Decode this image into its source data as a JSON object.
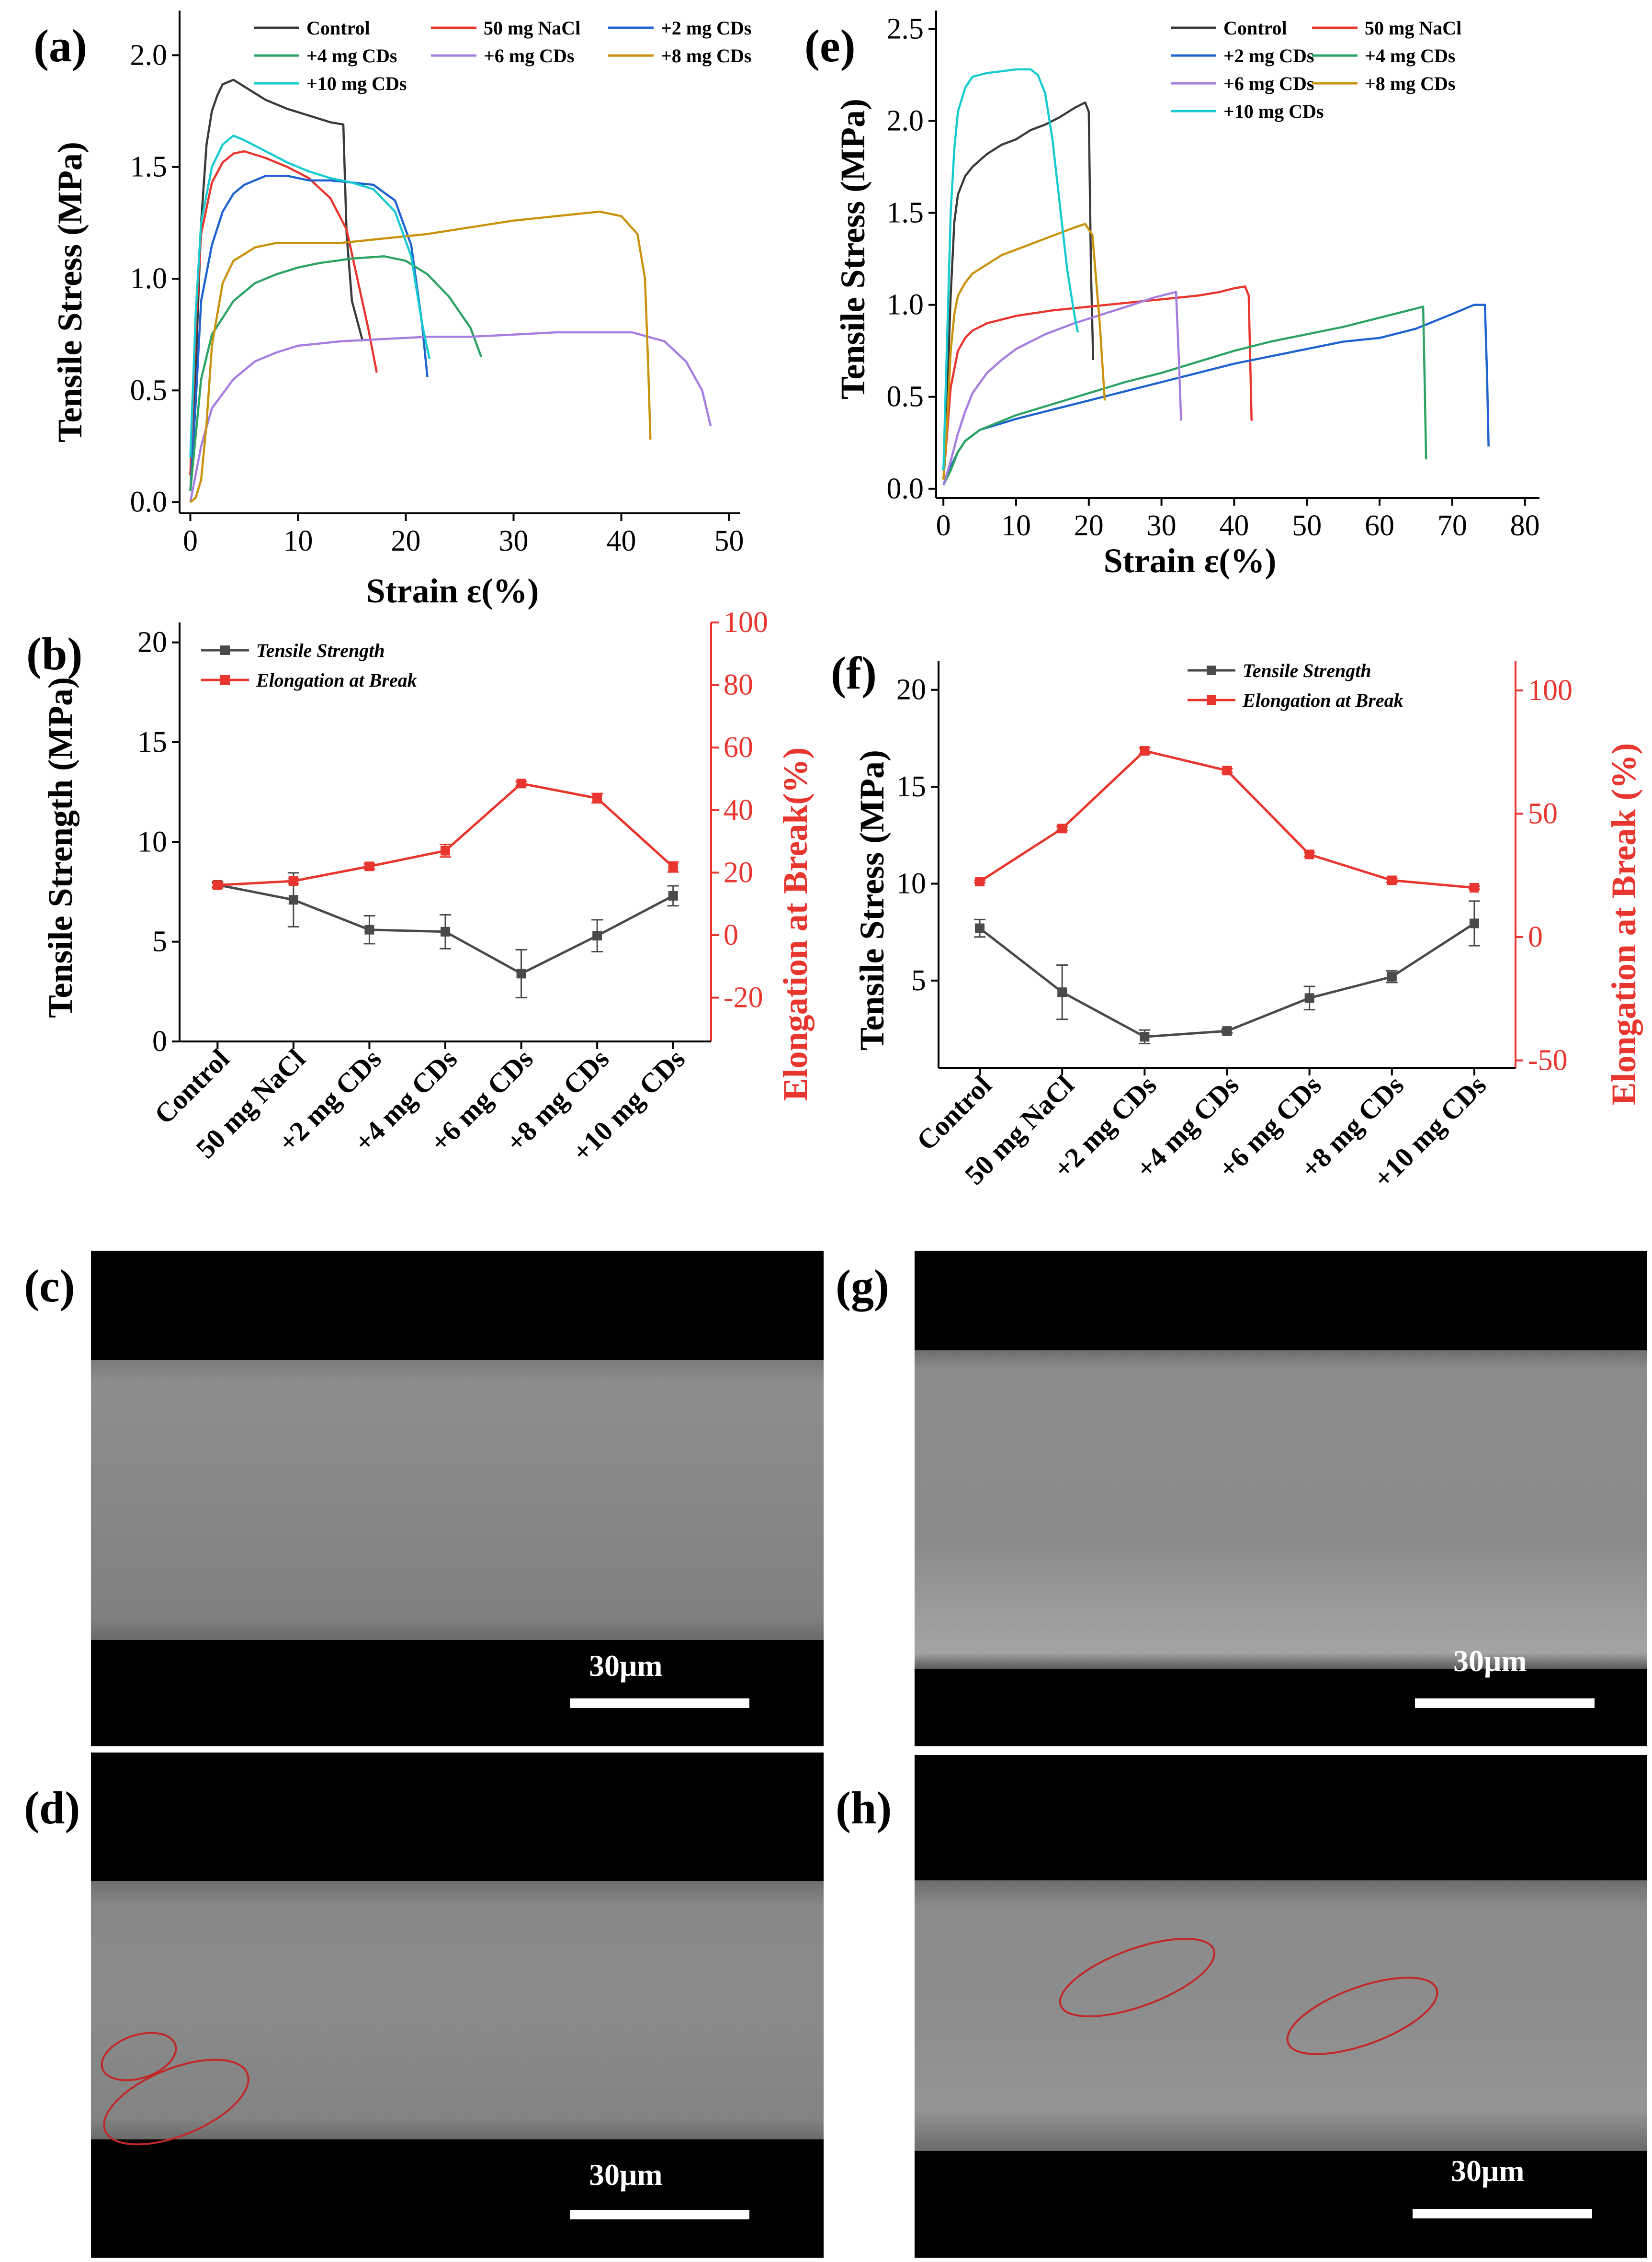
{
  "colors": {
    "Control": "#3a3a3a",
    "50 mg NaCl": "#e8352e",
    "+2 mg CDs": "#1f63d0",
    "+4 mg CDs": "#2ea464",
    "+6 mg CDs": "#a57ee0",
    "+8 mg CDs": "#c9930e",
    "+10 mg CDs": "#18cbd0",
    "strength": "#4a4a4a",
    "elong": "#e8352e",
    "ellipse": "#c0282a"
  },
  "panels": {
    "a": "(a)",
    "b": "(b)",
    "c": "(c)",
    "d": "(d)",
    "e": "(e)",
    "f": "(f)",
    "g": "(g)",
    "h": "(h)"
  },
  "scale": {
    "c": "30μm",
    "d": "30μm",
    "g": "30μm",
    "h": "30μm"
  },
  "chart_data": [
    {
      "id": "a",
      "type": "line",
      "xlabel": "Strain ε(%)",
      "ylabel": "Tensile Stress (MPa)",
      "xlim": [
        -1,
        51
      ],
      "ylim": [
        -0.05,
        2.2
      ],
      "xticks": [
        0,
        10,
        20,
        30,
        40,
        50
      ],
      "yticks": [
        0.0,
        0.5,
        1.0,
        1.5,
        2.0
      ],
      "legend": [
        "Control",
        "50 mg NaCl",
        "+2 mg CDs",
        "+4 mg CDs",
        "+6 mg CDs",
        "+8 mg CDs",
        "+10 mg CDs"
      ],
      "series": [
        {
          "name": "Control",
          "x": [
            0,
            0.5,
            1,
            1.5,
            2,
            2.5,
            3,
            4,
            5,
            7,
            9,
            11,
            13,
            14.2,
            14.5,
            15,
            16
          ],
          "y": [
            0.12,
            0.6,
            1.25,
            1.6,
            1.75,
            1.82,
            1.87,
            1.89,
            1.86,
            1.8,
            1.76,
            1.73,
            1.7,
            1.69,
            1.2,
            0.9,
            0.72
          ]
        },
        {
          "name": "50 mg NaCl",
          "x": [
            0,
            0.5,
            1,
            2,
            3,
            4,
            5,
            7,
            9,
            11,
            13,
            14.5,
            15.5,
            16.5,
            17.3
          ],
          "y": [
            0.12,
            0.8,
            1.2,
            1.43,
            1.52,
            1.56,
            1.57,
            1.54,
            1.5,
            1.45,
            1.36,
            1.22,
            1.0,
            0.78,
            0.58
          ]
        },
        {
          "name": "+2 mg CDs",
          "x": [
            0,
            0.5,
            1,
            2,
            3,
            4,
            5,
            7,
            9,
            11,
            13,
            15,
            17,
            19,
            20.5,
            21.5,
            22
          ],
          "y": [
            0.05,
            0.45,
            0.9,
            1.15,
            1.3,
            1.38,
            1.42,
            1.46,
            1.46,
            1.44,
            1.44,
            1.43,
            1.42,
            1.35,
            1.15,
            0.8,
            0.56
          ]
        },
        {
          "name": "+4 mg CDs",
          "x": [
            0,
            0.5,
            1,
            2,
            4,
            6,
            8,
            10,
            12,
            15,
            18,
            20,
            22,
            24,
            26,
            27
          ],
          "y": [
            0.05,
            0.3,
            0.55,
            0.75,
            0.9,
            0.98,
            1.02,
            1.05,
            1.07,
            1.09,
            1.1,
            1.08,
            1.02,
            0.92,
            0.78,
            0.65
          ]
        },
        {
          "name": "+6 mg CDs",
          "x": [
            0,
            1,
            2,
            4,
            6,
            8,
            10,
            14,
            18,
            22,
            26,
            30,
            34,
            38,
            41,
            44,
            46,
            47.5,
            48.3
          ],
          "y": [
            0.0,
            0.25,
            0.42,
            0.55,
            0.63,
            0.67,
            0.7,
            0.72,
            0.73,
            0.74,
            0.74,
            0.75,
            0.76,
            0.76,
            0.76,
            0.72,
            0.63,
            0.5,
            0.34
          ]
        },
        {
          "name": "+8 mg CDs",
          "x": [
            0,
            0.5,
            1,
            1.5,
            2,
            3,
            4,
            6,
            8,
            10,
            14,
            18,
            22,
            26,
            30,
            34,
            38,
            40,
            41.5,
            42.2,
            42.5,
            42.7
          ],
          "y": [
            0.0,
            0.02,
            0.1,
            0.35,
            0.7,
            0.98,
            1.08,
            1.14,
            1.16,
            1.16,
            1.16,
            1.18,
            1.2,
            1.23,
            1.26,
            1.28,
            1.3,
            1.28,
            1.2,
            1.0,
            0.6,
            0.28
          ]
        },
        {
          "name": "+10 mg CDs",
          "x": [
            0,
            0.5,
            1,
            2,
            3,
            4,
            5,
            7,
            9,
            11,
            13,
            15,
            17,
            19,
            20.5,
            21.5,
            22.2
          ],
          "y": [
            0.2,
            0.85,
            1.25,
            1.5,
            1.6,
            1.64,
            1.62,
            1.57,
            1.52,
            1.48,
            1.45,
            1.43,
            1.4,
            1.3,
            1.1,
            0.8,
            0.64
          ]
        }
      ]
    },
    {
      "id": "e",
      "type": "line",
      "xlabel": "Strain ε(%)",
      "ylabel": "Tensile Stress (MPa)",
      "xlim": [
        -1,
        82
      ],
      "ylim": [
        -0.05,
        2.6
      ],
      "xticks": [
        0,
        10,
        20,
        30,
        40,
        50,
        60,
        70,
        80
      ],
      "yticks": [
        0.0,
        0.5,
        1.0,
        1.5,
        2.0,
        2.5
      ],
      "legend": [
        "Control",
        "50 mg NaCl",
        "+2 mg CDs",
        "+4 mg CDs",
        "+6 mg CDs",
        "+8 mg CDs",
        "+10 mg CDs"
      ],
      "series": [
        {
          "name": "Control",
          "x": [
            0,
            0.5,
            1,
            1.5,
            2,
            3,
            4,
            6,
            8,
            10,
            12,
            14,
            16,
            18,
            19.5,
            20,
            20.3,
            20.6
          ],
          "y": [
            0.1,
            0.5,
            1.05,
            1.45,
            1.6,
            1.7,
            1.75,
            1.82,
            1.87,
            1.9,
            1.95,
            1.98,
            2.02,
            2.07,
            2.1,
            2.05,
            1.2,
            0.7
          ]
        },
        {
          "name": "50 mg NaCl",
          "x": [
            0,
            0.5,
            1,
            2,
            3,
            4,
            6,
            8,
            10,
            15,
            20,
            25,
            30,
            35,
            38,
            40,
            41.5,
            42,
            42.4
          ],
          "y": [
            0.05,
            0.3,
            0.55,
            0.75,
            0.82,
            0.86,
            0.9,
            0.92,
            0.94,
            0.97,
            0.99,
            1.01,
            1.03,
            1.05,
            1.07,
            1.09,
            1.1,
            1.05,
            0.37
          ]
        },
        {
          "name": "+2 mg CDs",
          "x": [
            0,
            1,
            2,
            3,
            5,
            10,
            15,
            20,
            25,
            30,
            35,
            40,
            45,
            50,
            55,
            60,
            65,
            70,
            73,
            74.5,
            74.8,
            75
          ],
          "y": [
            0.02,
            0.12,
            0.2,
            0.26,
            0.32,
            0.38,
            0.43,
            0.48,
            0.53,
            0.58,
            0.63,
            0.68,
            0.72,
            0.76,
            0.8,
            0.82,
            0.87,
            0.95,
            1.0,
            1.0,
            0.6,
            0.23
          ]
        },
        {
          "name": "+4 mg CDs",
          "x": [
            0,
            1,
            2,
            3,
            5,
            10,
            15,
            20,
            25,
            30,
            35,
            40,
            45,
            50,
            55,
            60,
            64,
            66,
            66.2,
            66.4
          ],
          "y": [
            0.02,
            0.1,
            0.2,
            0.26,
            0.32,
            0.4,
            0.46,
            0.52,
            0.58,
            0.63,
            0.69,
            0.75,
            0.8,
            0.84,
            0.88,
            0.93,
            0.97,
            0.99,
            0.6,
            0.16
          ]
        },
        {
          "name": "+6 mg CDs",
          "x": [
            0,
            1,
            2,
            3,
            4,
            6,
            8,
            10,
            14,
            18,
            22,
            26,
            29,
            31,
            32,
            32.4,
            32.7
          ],
          "y": [
            0.02,
            0.15,
            0.3,
            0.42,
            0.52,
            0.63,
            0.7,
            0.76,
            0.84,
            0.9,
            0.95,
            1.0,
            1.04,
            1.06,
            1.07,
            0.7,
            0.37
          ]
        },
        {
          "name": "+8 mg CDs",
          "x": [
            0,
            0.5,
            1,
            1.5,
            2,
            3,
            4,
            6,
            8,
            10,
            12,
            14,
            16,
            18,
            19.5,
            20.5,
            21.5,
            22.2
          ],
          "y": [
            0.05,
            0.35,
            0.75,
            0.95,
            1.05,
            1.12,
            1.17,
            1.22,
            1.27,
            1.3,
            1.33,
            1.36,
            1.39,
            1.42,
            1.44,
            1.38,
            0.9,
            0.48
          ]
        },
        {
          "name": "+10 mg CDs",
          "x": [
            0,
            0.5,
            1,
            1.5,
            2,
            3,
            4,
            6,
            8,
            10,
            12,
            13,
            14,
            15,
            16,
            17,
            18,
            18.5
          ],
          "y": [
            0.1,
            0.8,
            1.5,
            1.85,
            2.05,
            2.18,
            2.24,
            2.26,
            2.27,
            2.28,
            2.28,
            2.25,
            2.15,
            1.9,
            1.55,
            1.2,
            0.95,
            0.85
          ]
        }
      ]
    },
    {
      "id": "b",
      "type": "line",
      "categories": [
        "Control",
        "50 mg NaCl",
        "+2 mg CDs",
        "+4 mg CDs",
        "+6 mg CDs",
        "+8 mg CDs",
        "+10 mg CDs"
      ],
      "ylabel": "Tensile Strength (MPa)",
      "y2label": "Elongation at Break(%)",
      "ylim": [
        0,
        21
      ],
      "y2lim": [
        -34,
        100
      ],
      "yticks": [
        0,
        5,
        10,
        15,
        20
      ],
      "y2ticks": [
        -20,
        0,
        20,
        40,
        60,
        80,
        100
      ],
      "legend": [
        "Tensile Strength",
        "Elongation at Break"
      ],
      "series": [
        {
          "name": "Tensile Strength",
          "axis": "left",
          "values": [
            7.85,
            7.1,
            5.6,
            5.5,
            3.4,
            5.3,
            7.3
          ],
          "errors": [
            0.15,
            1.35,
            0.7,
            0.85,
            1.2,
            0.8,
            0.5
          ]
        },
        {
          "name": "Elongation at Break",
          "axis": "right",
          "values": [
            16.0,
            17.3,
            22.0,
            27.0,
            48.5,
            43.8,
            21.8
          ],
          "errors": [
            0.6,
            0.8,
            0.8,
            2.0,
            0.7,
            1.5,
            1.6
          ]
        }
      ]
    },
    {
      "id": "f",
      "type": "line",
      "categories": [
        "Control",
        "50 mg NaCl",
        "+2 mg CDs",
        "+4 mg CDs",
        "+6 mg CDs",
        "+8 mg CDs",
        "+10 mg CDs"
      ],
      "ylabel": "Tensile Stress (MPa)",
      "y2label": "Elongation at Break (%)",
      "ylim": [
        0.5,
        21.5
      ],
      "y2lim": [
        -53,
        112
      ],
      "yticks": [
        5,
        10,
        15,
        20
      ],
      "y2ticks": [
        -50,
        0,
        50,
        100
      ],
      "legend": [
        "Tensile Strength",
        "Elongation at Break"
      ],
      "series": [
        {
          "name": "Tensile Strength",
          "axis": "left",
          "values": [
            7.7,
            4.4,
            2.1,
            2.4,
            4.1,
            5.2,
            7.95
          ],
          "errors": [
            0.45,
            1.4,
            0.35,
            0.1,
            0.6,
            0.3,
            1.15
          ]
        },
        {
          "name": "Elongation at Break",
          "axis": "right",
          "values": [
            22.5,
            44.0,
            75.5,
            67.5,
            33.5,
            23.0,
            20.0
          ],
          "errors": [
            0.5,
            0.8,
            1.2,
            0.8,
            0.8,
            0.8,
            0.6
          ]
        }
      ]
    }
  ]
}
